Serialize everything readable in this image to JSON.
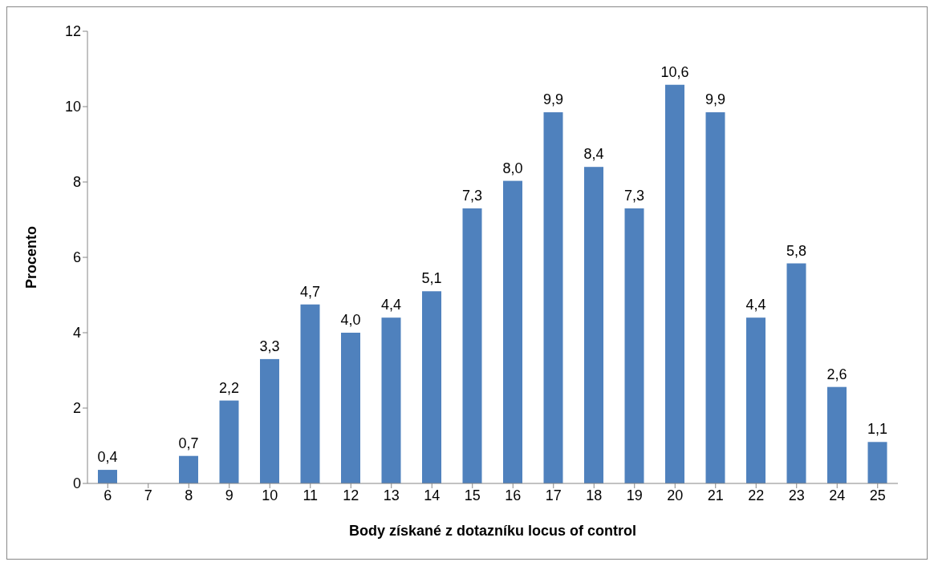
{
  "chart_data": {
    "type": "bar",
    "xlabel": "Body získané z dotazníku locus of control",
    "ylabel": "Procento",
    "categories": [
      "6",
      "7",
      "8",
      "9",
      "10",
      "11",
      "12",
      "13",
      "14",
      "15",
      "16",
      "17",
      "18",
      "19",
      "20",
      "21",
      "22",
      "23",
      "24",
      "25"
    ],
    "values": [
      0.36,
      0,
      0.73,
      2.2,
      3.3,
      4.75,
      4.0,
      4.4,
      5.1,
      7.3,
      8.03,
      9.85,
      8.4,
      7.3,
      10.58,
      9.85,
      4.4,
      5.84,
      2.56,
      1.1
    ],
    "value_labels": [
      "0,4",
      null,
      "0,7",
      "2,2",
      "3,3",
      "4,7",
      "4,0",
      "4,4",
      "5,1",
      "7,3",
      "8,0",
      "9,9",
      "8,4",
      "7,3",
      "10,6",
      "9,9",
      "4,4",
      "5,8",
      "2,6",
      "1,1"
    ],
    "color": "#4f81bd",
    "ylim": [
      0,
      12
    ],
    "yticks": [
      0,
      2,
      4,
      6,
      8,
      10,
      12
    ],
    "grid": false
  }
}
